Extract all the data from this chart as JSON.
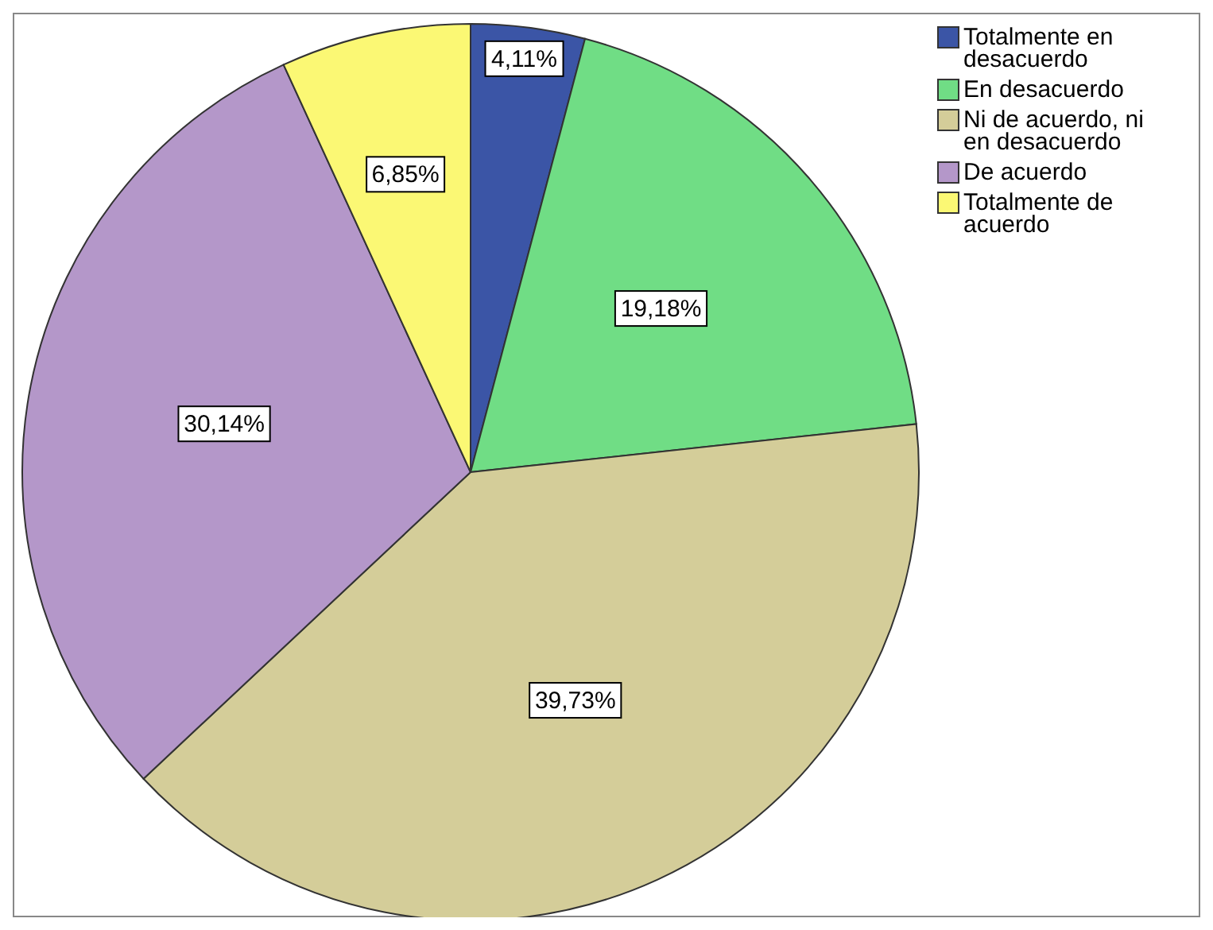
{
  "chart_data": {
    "type": "pie",
    "categories": [
      "Totalmente en desacuerdo",
      "En desacuerdo",
      "Ni de acuerdo, ni en desacuerdo",
      "De acuerdo",
      "Totalmente de acuerdo"
    ],
    "values": [
      4.11,
      19.18,
      39.73,
      30.14,
      6.85
    ],
    "value_labels": [
      "4,11%",
      "19,18%",
      "39,73%",
      "30,14%",
      "6,85%"
    ],
    "colors": [
      "#3b55a6",
      "#70dd85",
      "#d4cd99",
      "#b497c9",
      "#fbf874"
    ],
    "legend": "top right"
  }
}
